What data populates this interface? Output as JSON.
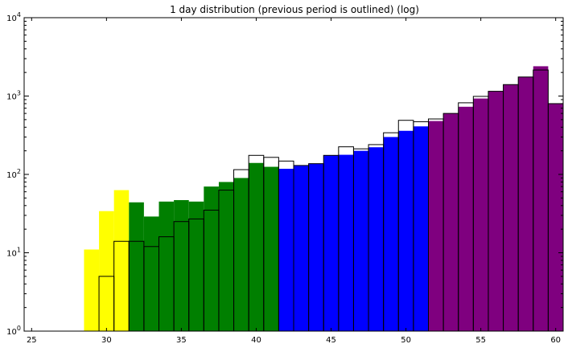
{
  "chart_data": {
    "type": "bar",
    "title": "1 day distribution (previous period is outlined) (log)",
    "xlabel": "",
    "ylabel": "",
    "y_scale": "log",
    "xlim": [
      24.5,
      60.5
    ],
    "ylim": [
      1,
      10000
    ],
    "bin_width": 1,
    "x_ticks": [
      25,
      30,
      35,
      40,
      45,
      50,
      55,
      60
    ],
    "y_ticks": [
      {
        "value": 1,
        "base": "10",
        "exp": "0"
      },
      {
        "value": 10,
        "base": "10",
        "exp": "1"
      },
      {
        "value": 100,
        "base": "10",
        "exp": "2"
      },
      {
        "value": 1000,
        "base": "10",
        "exp": "3"
      },
      {
        "value": 10000,
        "base": "10",
        "exp": "4"
      }
    ],
    "colors": {
      "yellow": "#ffff00",
      "green": "#007f00",
      "blue": "#0000ff",
      "purple": "#7f007f",
      "outline": "#000000"
    },
    "series": [
      {
        "role": "current",
        "x": [
          29,
          30,
          31,
          32,
          33,
          34,
          35,
          36,
          37,
          38,
          39,
          40,
          41,
          42,
          43,
          44,
          45,
          46,
          47,
          48,
          49,
          50,
          51,
          52,
          53,
          54,
          55,
          56,
          57,
          58,
          59,
          60
        ],
        "values": [
          11,
          34,
          63,
          44,
          29,
          45,
          47,
          45,
          70,
          80,
          90,
          140,
          125,
          118,
          130,
          138,
          175,
          178,
          200,
          222,
          300,
          360,
          410,
          480,
          600,
          730,
          930,
          1150,
          1400,
          1750,
          2400,
          800
        ],
        "colors": [
          "yellow",
          "yellow",
          "yellow",
          "green",
          "green",
          "green",
          "green",
          "green",
          "green",
          "green",
          "green",
          "green",
          "green",
          "blue",
          "blue",
          "blue",
          "blue",
          "blue",
          "blue",
          "blue",
          "blue",
          "blue",
          "blue",
          "purple",
          "purple",
          "purple",
          "purple",
          "purple",
          "purple",
          "purple",
          "purple",
          "purple"
        ]
      },
      {
        "role": "previous",
        "x": [
          30,
          31,
          32,
          33,
          34,
          35,
          36,
          37,
          38,
          39,
          40,
          41,
          42,
          43,
          44,
          45,
          46,
          47,
          48,
          49,
          50,
          51,
          52,
          53,
          54,
          55,
          56,
          57,
          58,
          59,
          60
        ],
        "values": [
          5,
          14,
          14,
          12,
          16,
          25,
          27,
          35,
          63,
          115,
          175,
          165,
          148,
          130,
          137,
          175,
          225,
          212,
          240,
          340,
          490,
          470,
          510,
          600,
          820,
          990,
          1150,
          1400,
          1750,
          2150,
          800
        ]
      }
    ]
  }
}
